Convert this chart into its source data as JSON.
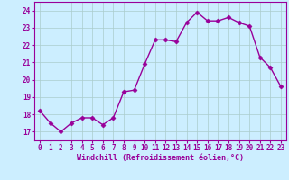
{
  "x": [
    0,
    1,
    2,
    3,
    4,
    5,
    6,
    7,
    8,
    9,
    10,
    11,
    12,
    13,
    14,
    15,
    16,
    17,
    18,
    19,
    20,
    21,
    22,
    23
  ],
  "y": [
    18.2,
    17.5,
    17.0,
    17.5,
    17.8,
    17.8,
    17.4,
    17.8,
    19.3,
    19.4,
    20.9,
    22.3,
    22.3,
    22.2,
    23.3,
    23.9,
    23.4,
    23.4,
    23.6,
    23.3,
    23.1,
    21.3,
    20.7,
    19.6
  ],
  "line_color": "#990099",
  "marker": "D",
  "marker_size": 2.5,
  "bg_color": "#cceeff",
  "grid_color": "#aacccc",
  "xlabel": "Windchill (Refroidissement éolien,°C)",
  "xlabel_color": "#990099",
  "tick_color": "#990099",
  "ylim": [
    16.5,
    24.5
  ],
  "xlim": [
    -0.5,
    23.5
  ],
  "yticks": [
    17,
    18,
    19,
    20,
    21,
    22,
    23,
    24
  ],
  "xticks": [
    0,
    1,
    2,
    3,
    4,
    5,
    6,
    7,
    8,
    9,
    10,
    11,
    12,
    13,
    14,
    15,
    16,
    17,
    18,
    19,
    20,
    21,
    22,
    23
  ],
  "line_width": 1.0,
  "xlabel_fontsize": 6.0,
  "tick_fontsize": 5.5
}
